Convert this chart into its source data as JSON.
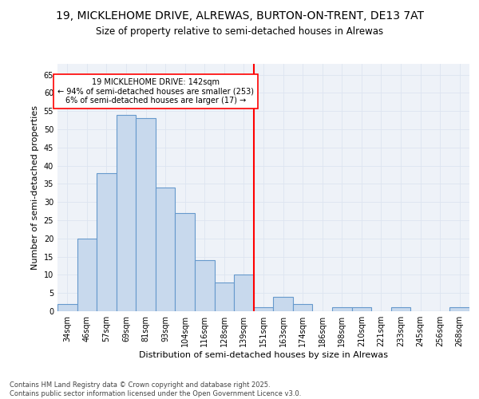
{
  "title": "19, MICKLEHOME DRIVE, ALREWAS, BURTON-ON-TRENT, DE13 7AT",
  "subtitle": "Size of property relative to semi-detached houses in Alrewas",
  "xlabel": "Distribution of semi-detached houses by size in Alrewas",
  "ylabel": "Number of semi-detached properties",
  "categories": [
    "34sqm",
    "46sqm",
    "57sqm",
    "69sqm",
    "81sqm",
    "93sqm",
    "104sqm",
    "116sqm",
    "128sqm",
    "139sqm",
    "151sqm",
    "163sqm",
    "174sqm",
    "186sqm",
    "198sqm",
    "210sqm",
    "221sqm",
    "233sqm",
    "245sqm",
    "256sqm",
    "268sqm"
  ],
  "values": [
    2,
    20,
    38,
    54,
    53,
    34,
    27,
    14,
    8,
    10,
    1,
    4,
    2,
    0,
    1,
    1,
    0,
    1,
    0,
    0,
    1
  ],
  "bar_color": "#c8d9ed",
  "bar_edge_color": "#6699cc",
  "bar_linewidth": 0.8,
  "vline_x_index": 9.5,
  "annotation_text_line1": "19 MICKLEHOME DRIVE: 142sqm",
  "annotation_text_line2": "← 94% of semi-detached houses are smaller (253)",
  "annotation_text_line3": "6% of semi-detached houses are larger (17) →",
  "annotation_box_color": "white",
  "annotation_box_edge_color": "red",
  "vline_color": "red",
  "vline_linewidth": 1.5,
  "ylim": [
    0,
    68
  ],
  "yticks": [
    0,
    5,
    10,
    15,
    20,
    25,
    30,
    35,
    40,
    45,
    50,
    55,
    60,
    65
  ],
  "grid_color": "#dde4f0",
  "bg_color": "#eef2f8",
  "footer_line1": "Contains HM Land Registry data © Crown copyright and database right 2025.",
  "footer_line2": "Contains public sector information licensed under the Open Government Licence v3.0.",
  "title_fontsize": 10,
  "subtitle_fontsize": 8.5,
  "axis_label_fontsize": 8,
  "tick_fontsize": 7,
  "footer_fontsize": 6,
  "annotation_fontsize": 7
}
